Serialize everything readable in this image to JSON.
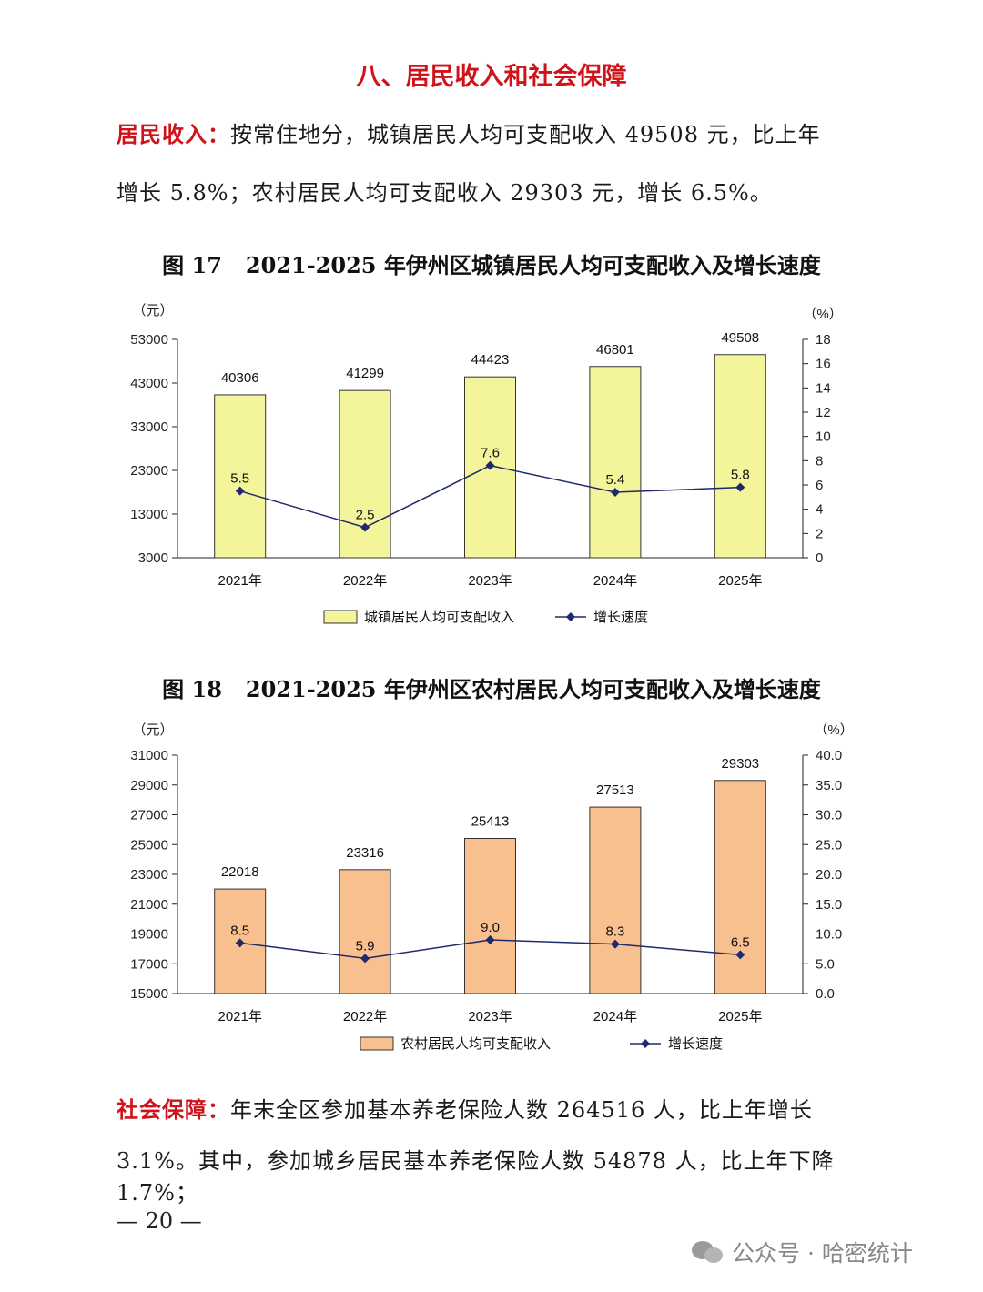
{
  "section_title": "八、居民收入和社会保障",
  "income": {
    "lead": "居民收入：",
    "line1": "按常住地分，城镇居民人均可支配收入 49508 元，比上年",
    "line2": "增长 5.8%；农村居民人均可支配收入 29303 元，增长 6.5%。"
  },
  "social": {
    "lead": "社会保障：",
    "line1": "年末全区参加基本养老保险人数 264516 人，比上年增长",
    "line2": "3.1%。其中，参加城乡居民基本养老保险人数 54878 人，比上年下降 1.7%；"
  },
  "page_number": "— 20 —",
  "watermark": "公众号 · 哈密统计",
  "colors": {
    "urban_bar": "#f4f49a",
    "rural_bar": "#f8c08f",
    "line": "#1f2a6b",
    "heading": "#d0121b"
  },
  "chart_data": [
    {
      "type": "bar",
      "fig_no": "图 17",
      "title": "2021-2025 年伊州区城镇居民人均可支配收入及增长速度",
      "categories": [
        "2021年",
        "2022年",
        "2023年",
        "2024年",
        "2025年"
      ],
      "ylabel_left": "（元）",
      "ylabel_right": "（%）",
      "ylim_left": [
        3000,
        53000
      ],
      "yticks_left": [
        3000,
        13000,
        23000,
        33000,
        43000,
        53000
      ],
      "ylim_right": [
        0,
        18
      ],
      "yticks_right": [
        0,
        2,
        4,
        6,
        8,
        10,
        12,
        14,
        16,
        18
      ],
      "series": [
        {
          "name": "城镇居民人均可支配收入",
          "kind": "bar",
          "axis": "left",
          "values": [
            40306,
            41299,
            44423,
            46801,
            49508
          ]
        },
        {
          "name": "增长速度",
          "kind": "line",
          "axis": "right",
          "values": [
            5.5,
            2.5,
            7.6,
            5.4,
            5.8
          ]
        }
      ],
      "legend": "bottom"
    },
    {
      "type": "bar",
      "fig_no": "图 18",
      "title": "2021-2025 年伊州区农村居民人均可支配收入及增长速度",
      "categories": [
        "2021年",
        "2022年",
        "2023年",
        "2024年",
        "2025年"
      ],
      "ylabel_left": "（元）",
      "ylabel_right": "（%）",
      "ylim_left": [
        15000,
        31000
      ],
      "yticks_left": [
        15000,
        17000,
        19000,
        21000,
        23000,
        25000,
        27000,
        29000,
        31000
      ],
      "ylim_right": [
        0,
        40
      ],
      "yticks_right": [
        "0.0",
        "5.0",
        "10.0",
        "15.0",
        "20.0",
        "25.0",
        "30.0",
        "35.0",
        "40.0"
      ],
      "series": [
        {
          "name": "农村居民人均可支配收入",
          "kind": "bar",
          "axis": "left",
          "values": [
            22018,
            23316,
            25413,
            27513,
            29303
          ]
        },
        {
          "name": "增长速度",
          "kind": "line",
          "axis": "right",
          "values": [
            "8.5",
            "5.9",
            "9.0",
            "8.3",
            "6.5"
          ]
        }
      ],
      "legend": "bottom"
    }
  ]
}
